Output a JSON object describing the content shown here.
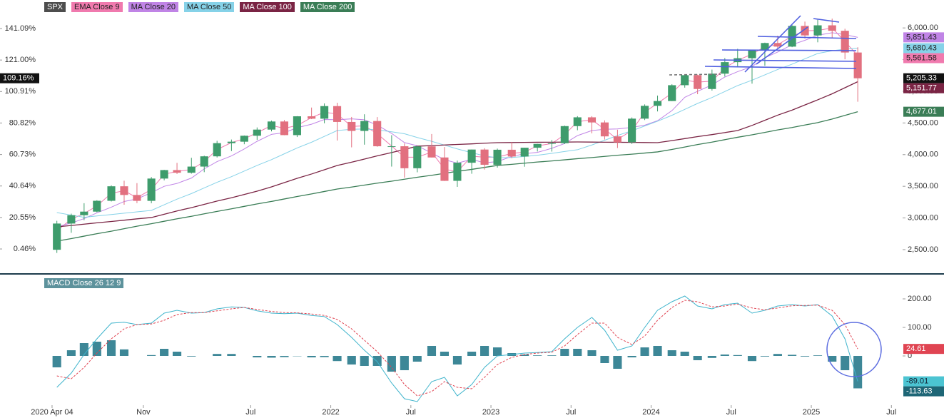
{
  "chart_data": [
    {
      "type": "candlestick",
      "name": "SPX",
      "up_color": "#3e9c6c",
      "down_color": "#e2707f",
      "last_label": "5,205.33",
      "last_pct_label": "109.16%",
      "x": [
        2020.29,
        2020.38,
        2020.46,
        2020.54,
        2020.63,
        2020.71,
        2020.79,
        2020.88,
        2020.96,
        2021.04,
        2021.13,
        2021.21,
        2021.29,
        2021.38,
        2021.46,
        2021.54,
        2021.63,
        2021.71,
        2021.79,
        2021.88,
        2021.96,
        2022.04,
        2022.13,
        2022.21,
        2022.29,
        2022.38,
        2022.46,
        2022.54,
        2022.63,
        2022.71,
        2022.79,
        2022.88,
        2022.96,
        2023.04,
        2023.13,
        2023.21,
        2023.29,
        2023.38,
        2023.46,
        2023.54,
        2023.63,
        2023.71,
        2023.79,
        2023.88,
        2023.96,
        2024.04,
        2024.13,
        2024.21,
        2024.29,
        2024.38,
        2024.46,
        2024.54,
        2024.63,
        2024.71,
        2024.79,
        2024.88,
        2024.96,
        2025.04,
        2025.13,
        2025.21,
        2025.29
      ],
      "open": [
        2498,
        2912,
        3044,
        3100,
        3271,
        3500,
        3363,
        3270,
        3622,
        3756,
        3714,
        3811,
        3973,
        4181,
        4204,
        4298,
        4395,
        4523,
        4308,
        4605,
        4567,
        4766,
        4516,
        4374,
        4530,
        4132,
        4132,
        3785,
        4130,
        3955,
        3586,
        3872,
        4080,
        3840,
        4077,
        3970,
        4109,
        4169,
        4180,
        4450,
        4589,
        4508,
        4288,
        4194,
        4568,
        4770,
        4846,
        5096,
        5254,
        5036,
        5278,
        5460,
        5522,
        5648,
        5762,
        5705,
        6032,
        5882,
        6041,
        5955,
        5612
      ],
      "high": [
        2955,
        3068,
        3233,
        3280,
        3515,
        3588,
        3550,
        3646,
        3760,
        3870,
        3950,
        3983,
        4218,
        4238,
        4302,
        4429,
        4537,
        4546,
        4608,
        4743,
        4808,
        4819,
        4595,
        4637,
        4593,
        4307,
        4177,
        4140,
        4325,
        4120,
        3906,
        4080,
        4101,
        4095,
        4195,
        4110,
        4170,
        4231,
        4458,
        4607,
        4607,
        4541,
        4393,
        4587,
        4793,
        4932,
        5111,
        5265,
        5264,
        5342,
        5524,
        5670,
        5651,
        5768,
        5878,
        6044,
        6100,
        6129,
        6147,
        5987,
        5695
      ],
      "low": [
        2448,
        2766,
        2965,
        3090,
        3260,
        3209,
        3234,
        3233,
        3594,
        3694,
        3700,
        3723,
        3955,
        4056,
        4164,
        4233,
        4367,
        4306,
        4278,
        4560,
        4495,
        4222,
        4115,
        4157,
        4124,
        3811,
        3637,
        3721,
        3955,
        3584,
        3491,
        3698,
        3764,
        3795,
        3943,
        3809,
        4049,
        4048,
        4167,
        4385,
        4335,
        4238,
        4104,
        4168,
        4546,
        4682,
        4845,
        5057,
        4954,
        5011,
        5234,
        5391,
        5120,
        5403,
        5674,
        5696,
        5832,
        5773,
        5837,
        5505,
        4835
      ],
      "close": [
        2912,
        3044,
        3100,
        3271,
        3500,
        3363,
        3270,
        3622,
        3756,
        3714,
        3811,
        3973,
        4181,
        4204,
        4298,
        4395,
        4523,
        4308,
        4605,
        4567,
        4766,
        4516,
        4374,
        4530,
        4132,
        4132,
        3785,
        4130,
        3955,
        3586,
        3872,
        4080,
        3840,
        4077,
        3970,
        4109,
        4169,
        4180,
        4450,
        4589,
        4508,
        4288,
        4194,
        4568,
        4770,
        4846,
        5096,
        5254,
        5036,
        5278,
        5460,
        5522,
        5648,
        5762,
        5705,
        6032,
        5882,
        6041,
        5955,
        5612,
        5205.33
      ],
      "series": [
        {
          "name": "EMA Close 9",
          "color": "#f07aae",
          "tag_text": "#222",
          "last_label": "5,561.58",
          "values": [
            2800,
            2980,
            3070,
            3190,
            3390,
            3430,
            3320,
            3450,
            3690,
            3735,
            3765,
            3890,
            4080,
            4190,
            4250,
            4345,
            4460,
            4415,
            4460,
            4585,
            4670,
            4640,
            4445,
            4455,
            4330,
            4135,
            3960,
            3960,
            4040,
            3770,
            3730,
            3975,
            3960,
            3960,
            4020,
            4040,
            4140,
            4175,
            4315,
            4520,
            4550,
            4400,
            4240,
            4380,
            4670,
            4810,
            4970,
            5175,
            5145,
            5160,
            5370,
            5490,
            5585,
            5705,
            5735,
            5870,
            5955,
            5960,
            6000,
            5785,
            5561.58
          ]
        },
        {
          "name": "MA Close 20",
          "color": "#c084e6",
          "tag_text": "#222",
          "last_label": "5,851.43",
          "values": [
            2860,
            2920,
            2990,
            3080,
            3170,
            3260,
            3300,
            3400,
            3500,
            3545,
            3630,
            3775,
            3890,
            3980,
            4090,
            4210,
            4320,
            4345,
            4425,
            4480,
            4555,
            4550,
            4565,
            4550,
            4465,
            4335,
            4190,
            4140,
            4025,
            3920,
            3865,
            3925,
            3870,
            3890,
            3970,
            4015,
            4035,
            4100,
            4175,
            4300,
            4380,
            4400,
            4405,
            4430,
            4465,
            4535,
            4695,
            4905,
            5000,
            5100,
            5225,
            5310,
            5390,
            5530,
            5620,
            5735,
            5805,
            5885,
            5925,
            5895,
            5851.43
          ]
        },
        {
          "name": "MA Close 50",
          "color": "#86d2e8",
          "tag_text": "#222",
          "last_label": "5,680.43",
          "values": [
            3085,
            3045,
            3010,
            3032,
            3054,
            3075,
            3097,
            3119,
            3208,
            3297,
            3385,
            3474,
            3563,
            3652,
            3740,
            3829,
            3921,
            4013,
            4105,
            4196,
            4288,
            4380,
            4400,
            4405,
            4390,
            4360,
            4330,
            4270,
            4210,
            4150,
            4090,
            4030,
            3980,
            3950,
            3955,
            3970,
            3990,
            4020,
            4050,
            4077,
            4152,
            4227,
            4302,
            4377,
            4452,
            4527,
            4621,
            4715,
            4808,
            4902,
            4996,
            5090,
            5175,
            5259,
            5344,
            5428,
            5513,
            5597,
            5640,
            5665,
            5680.43
          ]
        },
        {
          "name": "MA Close 100",
          "color": "#7a2444",
          "tag_text": "#fff",
          "last_label": "5,151.77",
          "values": [
            2860,
            2881,
            2902,
            2923,
            2944,
            2965,
            2986,
            3007,
            3059,
            3111,
            3163,
            3215,
            3267,
            3319,
            3371,
            3423,
            3491,
            3558,
            3626,
            3694,
            3761,
            3829,
            3880,
            3930,
            3981,
            4032,
            4082,
            4133,
            4142,
            4152,
            4161,
            4170,
            4180,
            4189,
            4191,
            4193,
            4195,
            4196,
            4198,
            4200,
            4198,
            4196,
            4195,
            4193,
            4191,
            4189,
            4221,
            4253,
            4285,
            4316,
            4348,
            4380,
            4461,
            4542,
            4623,
            4703,
            4784,
            4865,
            4960,
            5056,
            5151.77
          ]
        },
        {
          "name": "MA Close 200",
          "color": "#3a7d56",
          "tag_text": "#fff",
          "last_label": "4,677.01",
          "values": [
            2635,
            2674,
            2713,
            2752,
            2791,
            2830,
            2870,
            2909,
            2948,
            2987,
            3026,
            3065,
            3104,
            3144,
            3183,
            3222,
            3261,
            3300,
            3339,
            3379,
            3418,
            3457,
            3488,
            3519,
            3550,
            3581,
            3612,
            3643,
            3674,
            3705,
            3736,
            3767,
            3798,
            3829,
            3847,
            3865,
            3883,
            3900,
            3918,
            3936,
            3954,
            3972,
            3990,
            4007,
            4025,
            4043,
            4082,
            4120,
            4159,
            4197,
            4236,
            4274,
            4313,
            4351,
            4390,
            4428,
            4467,
            4505,
            4562,
            4620,
            4677.01
          ]
        }
      ],
      "xlim": [
        2020.18,
        2025.57
      ],
      "xticks": [
        {
          "value": 2020.26,
          "label": "2020 Apr 04"
        },
        {
          "value": 2020.83,
          "label": "Nov"
        },
        {
          "value": 2021.5,
          "label": "Jul"
        },
        2022,
        {
          "value": 2022.5,
          "label": "Jul"
        },
        2023,
        {
          "value": 2023.5,
          "label": "Jul"
        },
        2024,
        {
          "value": 2024.5,
          "label": "Jul"
        },
        2025,
        {
          "value": 2025.5,
          "label": "Jul"
        }
      ],
      "ylim": [
        2128,
        6441
      ],
      "yticks": [
        {
          "value": 6000,
          "label": "6,000.00"
        },
        {
          "value": 5500,
          "label": "5,500.00"
        },
        {
          "value": 5000,
          "label": "5,000.00"
        },
        {
          "value": 4500,
          "label": "4,500.00"
        },
        {
          "value": 4000,
          "label": "4,000.00"
        },
        {
          "value": 3500,
          "label": "3,500.00"
        },
        {
          "value": 3000,
          "label": "3,000.00"
        },
        {
          "value": 2500,
          "label": "2,500.00"
        }
      ],
      "y2lim": [
        -15.0,
        159.3
      ],
      "y2ticks": [
        {
          "value": 141.09,
          "label": "141.09%"
        },
        {
          "value": 121.0,
          "label": "121.00%"
        },
        {
          "value": 100.91,
          "label": "100.91%"
        },
        {
          "value": 80.82,
          "label": "80.82%"
        },
        {
          "value": 60.73,
          "label": "60.73%"
        },
        {
          "value": 40.64,
          "label": "40.64%"
        },
        {
          "value": 20.55,
          "label": "20.55%"
        },
        {
          "value": 0.46,
          "label": "0.46%"
        }
      ]
    },
    {
      "type": "macd",
      "title": "MACD Close 26 12 9",
      "macd": {
        "color": "#3fb4cc",
        "tag_color": "#4cc4d2",
        "values": [
          -110,
          -60,
          5,
          60,
          115,
          118,
          110,
          115,
          150,
          160,
          150,
          152,
          165,
          172,
          170,
          158,
          150,
          148,
          150,
          142,
          138,
          110,
          65,
          20,
          -20,
          -95,
          -150,
          -160,
          -90,
          -75,
          -140,
          -100,
          -40,
          0,
          5,
          10,
          12,
          15,
          60,
          100,
          135,
          90,
          20,
          35,
          100,
          160,
          190,
          210,
          175,
          165,
          180,
          185,
          150,
          160,
          175,
          180,
          175,
          180,
          140,
          60,
          -89.01
        ]
      },
      "signal": {
        "color": "#e04452",
        "values": [
          -70,
          -80,
          -40,
          10,
          60,
          95,
          110,
          112,
          125,
          145,
          152,
          152,
          158,
          165,
          170,
          163,
          156,
          152,
          151,
          147,
          142,
          128,
          95,
          55,
          15,
          -40,
          -100,
          -140,
          -125,
          -90,
          -110,
          -115,
          -75,
          -30,
          -5,
          5,
          10,
          13,
          35,
          75,
          115,
          115,
          65,
          40,
          70,
          125,
          170,
          195,
          190,
          172,
          175,
          182,
          168,
          162,
          168,
          176,
          177,
          178,
          160,
          110,
          24.61
        ]
      },
      "histogram": {
        "color": "#3d8797",
        "tag_color": "#1e6676",
        "values": [
          -40,
          20,
          45,
          50,
          55,
          23,
          0,
          3,
          25,
          15,
          -2,
          0,
          7,
          7,
          0,
          -5,
          -6,
          -4,
          -1,
          -5,
          -4,
          -18,
          -30,
          -35,
          -35,
          -55,
          -50,
          -20,
          35,
          15,
          -30,
          15,
          35,
          30,
          10,
          5,
          2,
          2,
          25,
          25,
          20,
          -25,
          -45,
          -5,
          30,
          35,
          20,
          15,
          -15,
          -7,
          5,
          3,
          -18,
          -2,
          7,
          4,
          -2,
          2,
          -20,
          -50,
          -113.63
        ]
      },
      "ylim": [
        -172.5,
        285
      ],
      "yticks": [
        {
          "value": 200,
          "label": "200.00"
        },
        {
          "value": 100,
          "label": "100.00"
        },
        0
      ]
    }
  ]
}
